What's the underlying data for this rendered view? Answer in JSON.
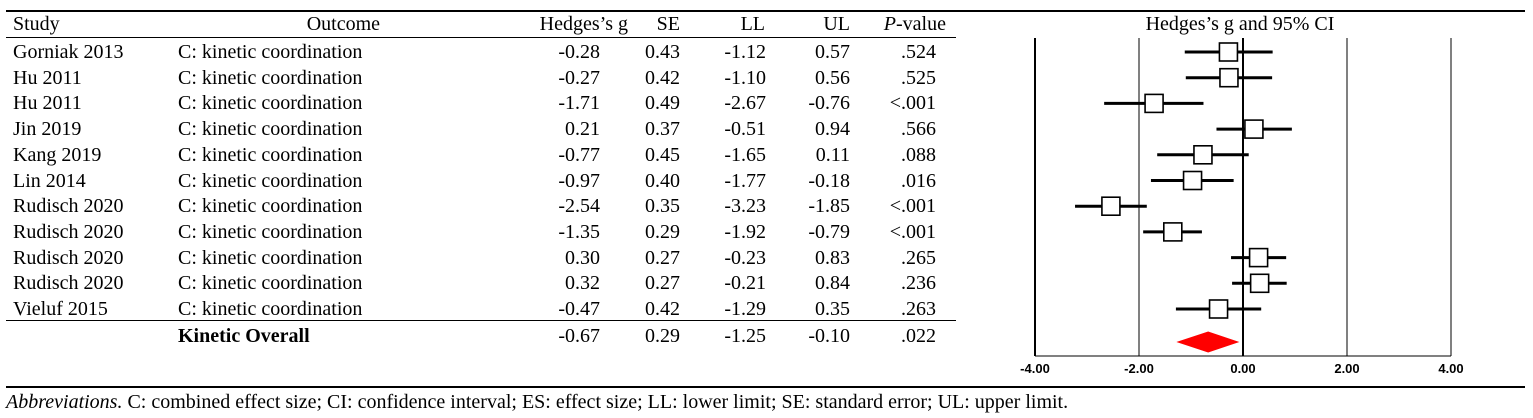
{
  "table": {
    "headers": {
      "study": "Study",
      "outcome": "Outcome",
      "g": "Hedges’s g",
      "se": "SE",
      "ll": "LL",
      "ul": "UL",
      "p_italic": "P",
      "p_rest": "-value",
      "plot": "Hedges’s g and 95% CI"
    },
    "rows": [
      {
        "study": "Gorniak 2013",
        "outcome": "C: kinetic coordination",
        "g": "-0.28",
        "se": "0.43",
        "ll": "-1.12",
        "ul": "0.57",
        "p": ".524"
      },
      {
        "study": "Hu 2011",
        "outcome": "C: kinetic coordination",
        "g": "-0.27",
        "se": "0.42",
        "ll": "-1.10",
        "ul": "0.56",
        "p": ".525"
      },
      {
        "study": "Hu 2011",
        "outcome": "C: kinetic coordination",
        "g": "-1.71",
        "se": "0.49",
        "ll": "-2.67",
        "ul": "-0.76",
        "p": "<.001"
      },
      {
        "study": "Jin 2019",
        "outcome": "C: kinetic coordination",
        "g": "0.21",
        "se": "0.37",
        "ll": "-0.51",
        "ul": "0.94",
        "p": ".566"
      },
      {
        "study": "Kang 2019",
        "outcome": "C: kinetic coordination",
        "g": "-0.77",
        "se": "0.45",
        "ll": "-1.65",
        "ul": "0.11",
        "p": ".088"
      },
      {
        "study": "Lin 2014",
        "outcome": "C: kinetic coordination",
        "g": "-0.97",
        "se": "0.40",
        "ll": "-1.77",
        "ul": "-0.18",
        "p": ".016"
      },
      {
        "study": "Rudisch 2020",
        "outcome": "C: kinetic coordination",
        "g": "-2.54",
        "se": "0.35",
        "ll": "-3.23",
        "ul": "-1.85",
        "p": "<.001"
      },
      {
        "study": "Rudisch 2020",
        "outcome": "C: kinetic coordination",
        "g": "-1.35",
        "se": "0.29",
        "ll": "-1.92",
        "ul": "-0.79",
        "p": "<.001"
      },
      {
        "study": "Rudisch 2020",
        "outcome": "C: kinetic coordination",
        "g": "0.30",
        "se": "0.27",
        "ll": "-0.23",
        "ul": "0.83",
        "p": ".265"
      },
      {
        "study": "Rudisch 2020",
        "outcome": "C: kinetic coordination",
        "g": "0.32",
        "se": "0.27",
        "ll": "-0.21",
        "ul": "0.84",
        "p": ".236"
      },
      {
        "study": "Vieluf 2015",
        "outcome": "C: kinetic coordination",
        "g": "-0.47",
        "se": "0.42",
        "ll": "-1.29",
        "ul": "0.35",
        "p": ".263"
      }
    ],
    "overall": {
      "label": "Kinetic Overall",
      "g": "-0.67",
      "se": "0.29",
      "ll": "-1.25",
      "ul": "-0.10",
      "p": ".022"
    }
  },
  "footnote": {
    "abbrev_label": "Abbreviations.",
    "text": " C: combined effect size; CI: confidence interval; ES: effect size; LL: lower limit; SE: standard error; UL: upper limit."
  },
  "chart_data": {
    "type": "forest",
    "title": "Hedges’s g and 95% CI",
    "xlim": [
      -4,
      4
    ],
    "ticks": [
      -4,
      -2,
      0,
      2,
      4
    ],
    "tick_labels": [
      "-4.00",
      "-2.00",
      "0.00",
      "2.00",
      "4.00"
    ],
    "grid": true,
    "studies": [
      {
        "g": -0.28,
        "ll": -1.12,
        "ul": 0.57
      },
      {
        "g": -0.27,
        "ll": -1.1,
        "ul": 0.56
      },
      {
        "g": -1.71,
        "ll": -2.67,
        "ul": -0.76
      },
      {
        "g": 0.21,
        "ll": -0.51,
        "ul": 0.94
      },
      {
        "g": -0.77,
        "ll": -1.65,
        "ul": 0.11
      },
      {
        "g": -0.97,
        "ll": -1.77,
        "ul": -0.18
      },
      {
        "g": -2.54,
        "ll": -3.23,
        "ul": -1.85
      },
      {
        "g": -1.35,
        "ll": -1.92,
        "ul": -0.79
      },
      {
        "g": 0.3,
        "ll": -0.23,
        "ul": 0.83
      },
      {
        "g": 0.32,
        "ll": -0.21,
        "ul": 0.84
      },
      {
        "g": -0.47,
        "ll": -1.29,
        "ul": 0.35
      }
    ],
    "overall": {
      "g": -0.67,
      "ll": -1.25,
      "ul": -0.1
    },
    "colors": {
      "summary": "#ff0000",
      "marker_fill": "#ffffff",
      "line": "#000000"
    }
  }
}
